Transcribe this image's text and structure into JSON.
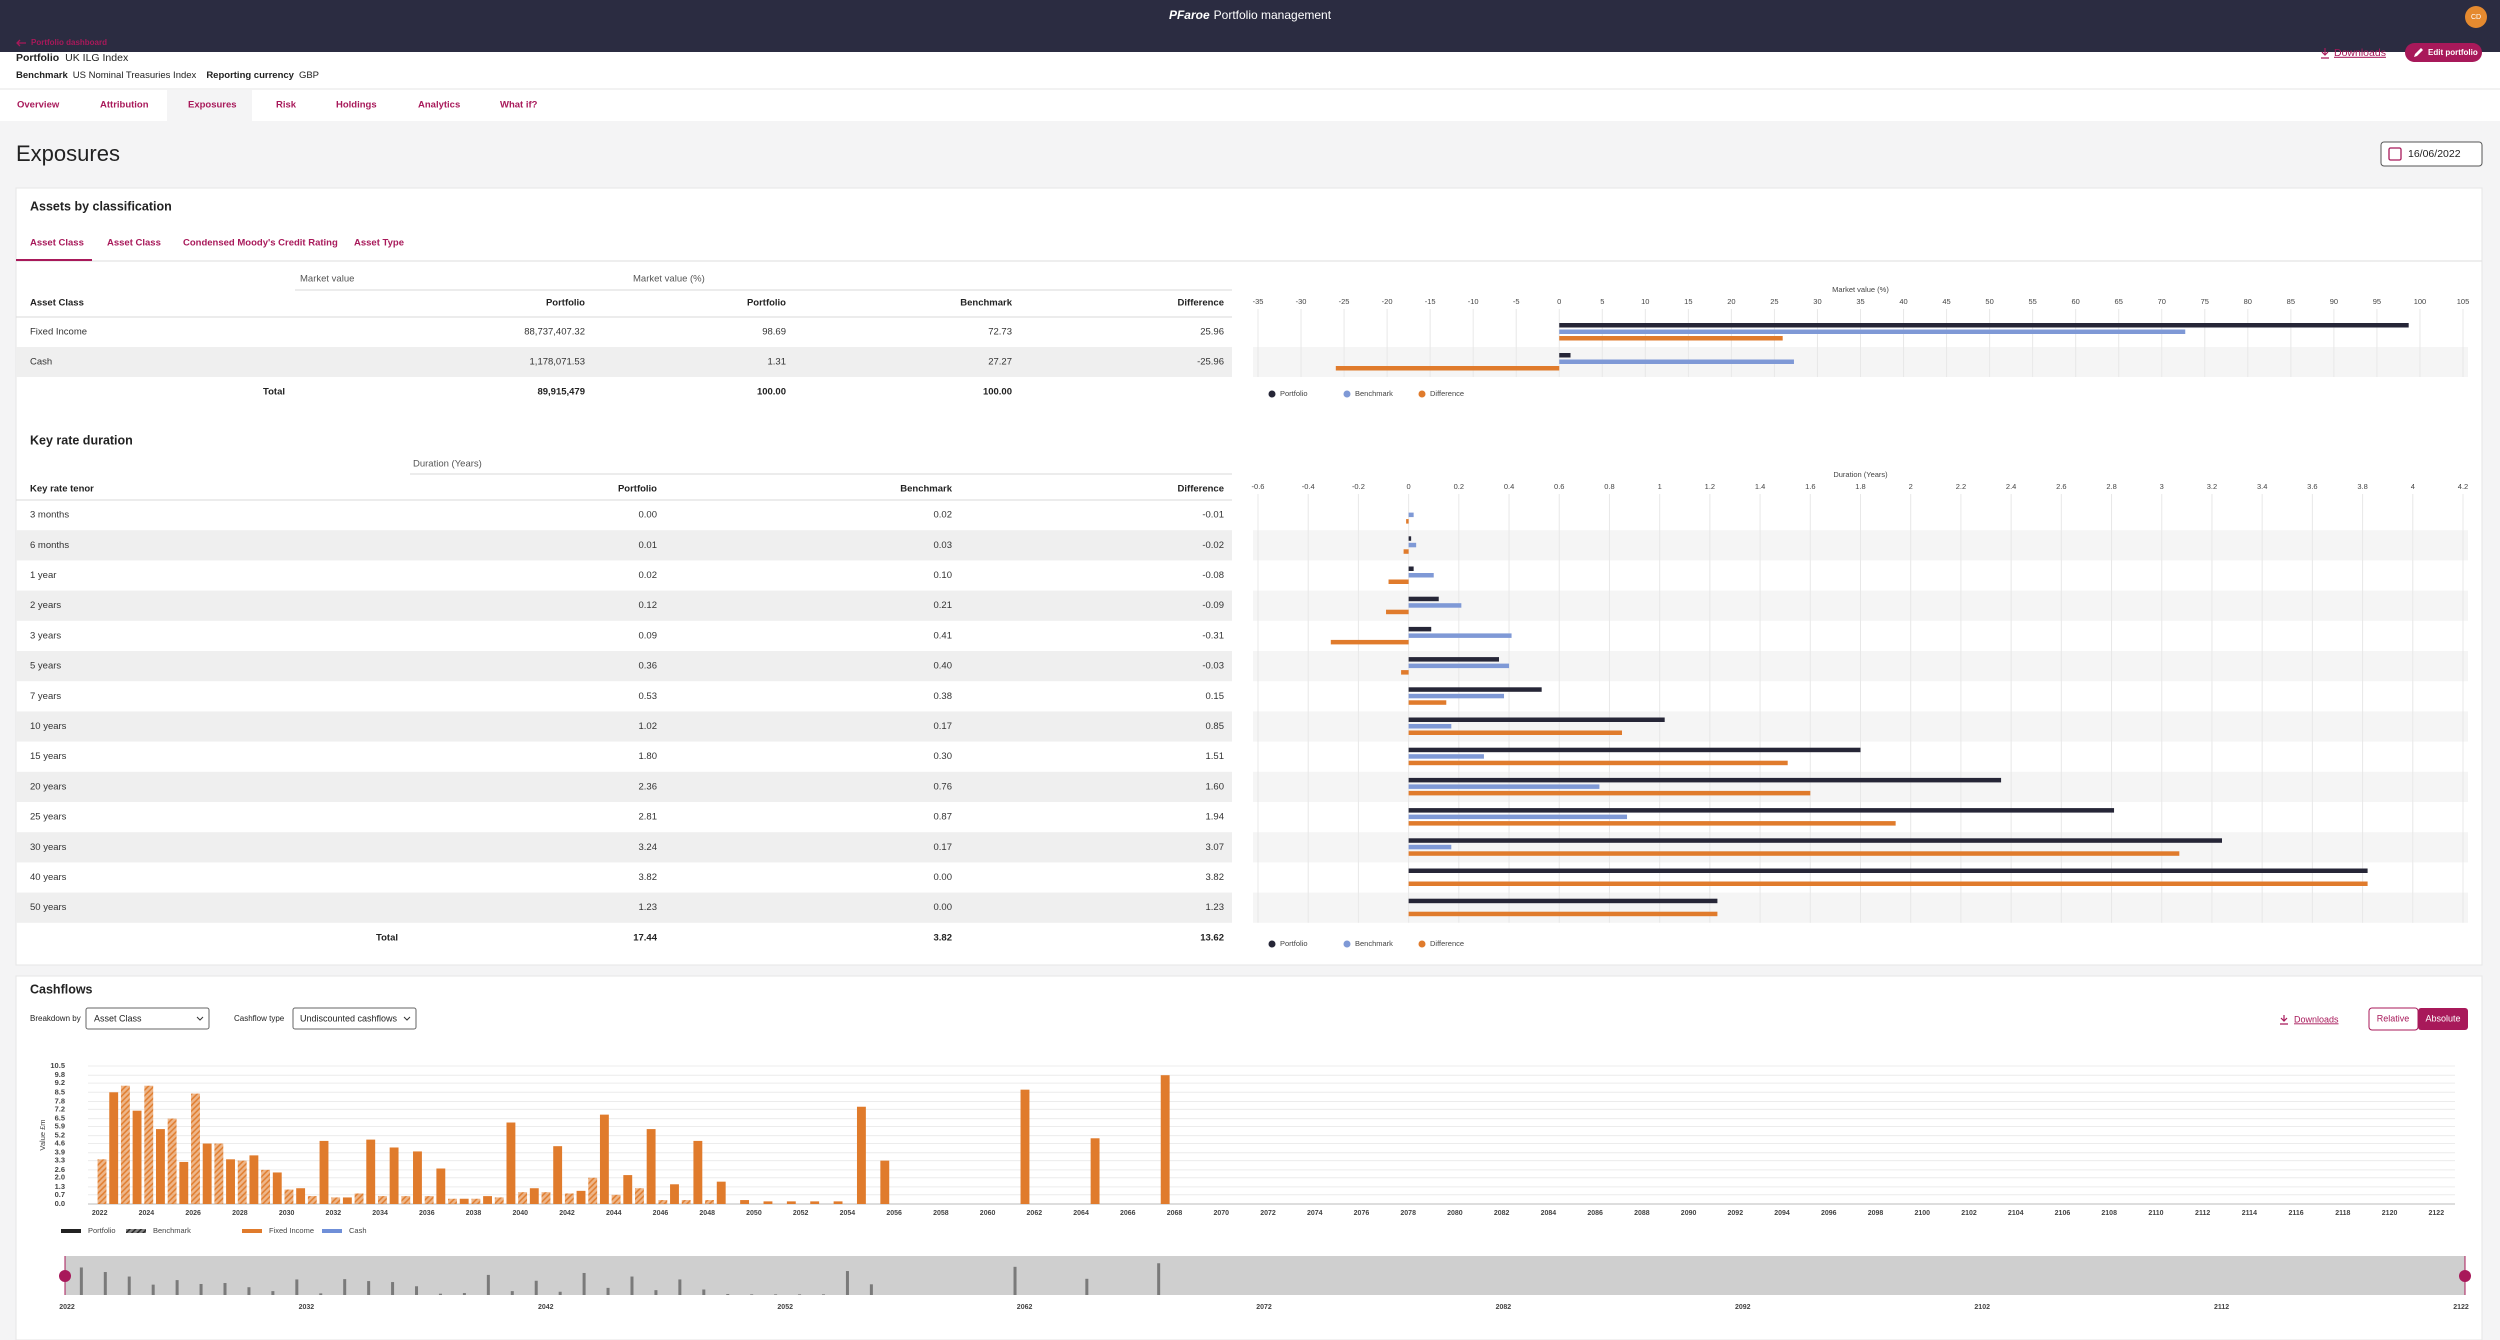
{
  "top_bar": {
    "brand": "PFaroe",
    "title": "Portfolio management",
    "avatar": "CD"
  },
  "header": {
    "back_link": "Portfolio dashboard",
    "portfolio_label": "Portfolio",
    "portfolio": "UK ILG Index",
    "benchmark_label": "Benchmark",
    "benchmark": "US Nominal Treasuries Index",
    "currency_label": "Reporting currency",
    "currency": "GBP",
    "downloads": "Downloads",
    "edit": "Edit portfolio"
  },
  "tabs": [
    "Overview",
    "Attribution",
    "Exposures",
    "Risk",
    "Holdings",
    "Analytics",
    "What if?"
  ],
  "page_title": "Exposures",
  "date": "16/06/2022",
  "assets": {
    "title": "Assets by classification",
    "subtabs": [
      "Asset Class",
      "Asset Class",
      "Condensed Moody's Credit Rating",
      "Asset Type"
    ],
    "table": {
      "group_headers": [
        "Market value",
        "Market value (%)"
      ],
      "columns": [
        "Asset Class",
        "Portfolio",
        "Portfolio",
        "Benchmark",
        "Difference"
      ],
      "rows": [
        [
          "88,737,407.32",
          "98.69",
          "72.73",
          "25.96"
        ],
        [
          "1,178,071.53",
          "1.31",
          "27.27",
          "-25.96"
        ]
      ],
      "total": [
        "Total",
        "89,915,479",
        "100.00",
        "100.00"
      ]
    }
  },
  "key_rate": {
    "title": "Key rate duration",
    "table": {
      "group_headers": [
        "Duration (Years)"
      ],
      "columns": [
        "Key rate tenor",
        "Portfolio",
        "Benchmark",
        "Difference"
      ],
      "rows": [
        [
          "0.00",
          "0.02",
          "-0.01"
        ],
        [
          "0.01",
          "0.03",
          "-0.02"
        ],
        [
          "0.02",
          "0.10",
          "-0.08"
        ],
        [
          "0.12",
          "0.21",
          "-0.09"
        ],
        [
          "0.09",
          "0.41",
          "-0.31"
        ],
        [
          "0.36",
          "0.40",
          "-0.03"
        ],
        [
          "0.53",
          "0.38",
          "0.15"
        ],
        [
          "1.02",
          "0.17",
          "0.85"
        ],
        [
          "1.80",
          "0.30",
          "1.51"
        ],
        [
          "2.36",
          "0.76",
          "1.60"
        ],
        [
          "2.81",
          "0.87",
          "1.94"
        ],
        [
          "3.24",
          "0.17",
          "3.07"
        ],
        [
          "3.82",
          "0.00",
          "3.82"
        ],
        [
          "1.23",
          "0.00",
          "1.23"
        ]
      ],
      "total": [
        "Total",
        "17.44",
        "3.82",
        "13.62"
      ]
    }
  },
  "cashflows": {
    "title": "Cashflows",
    "breakdown_label": "Breakdown by",
    "breakdown": "Asset Class",
    "type_label": "Cashflow type",
    "type": "Undiscounted cashflows",
    "downloads": "Downloads",
    "modes": [
      "Relative",
      "Absolute"
    ]
  },
  "chart_data": [
    {
      "type": "bar",
      "horizontal": true,
      "title": "Market value (%)",
      "grid": true,
      "categories": [
        "Fixed Income",
        "Cash"
      ],
      "series": [
        {
          "name": "Portfolio",
          "color": "#262637",
          "values": [
            98.69,
            1.31
          ]
        },
        {
          "name": "Benchmark",
          "color": "#7f99d6",
          "values": [
            72.73,
            27.27
          ]
        },
        {
          "name": "Difference",
          "color": "#e07b2c",
          "values": [
            25.96,
            -25.96
          ]
        }
      ],
      "xlim": [
        -35,
        105
      ],
      "xticks": [
        -35,
        -30,
        -25,
        -20,
        -15,
        -10,
        -5,
        0,
        5,
        10,
        15,
        20,
        25,
        30,
        35,
        40,
        45,
        50,
        55,
        60,
        65,
        70,
        75,
        80,
        85,
        90,
        95,
        100,
        105
      ]
    },
    {
      "type": "bar",
      "horizontal": true,
      "title": "Duration (Years)",
      "grid": true,
      "categories": [
        "3 months",
        "6 months",
        "1 year",
        "2 years",
        "3 years",
        "5 years",
        "7 years",
        "10 years",
        "15 years",
        "20 years",
        "25 years",
        "30 years",
        "40 years",
        "50 years"
      ],
      "series": [
        {
          "name": "Portfolio",
          "color": "#262637",
          "values": [
            0,
            0.01,
            0.02,
            0.12,
            0.09,
            0.36,
            0.53,
            1.02,
            1.8,
            2.36,
            2.81,
            3.24,
            3.82,
            1.23
          ]
        },
        {
          "name": "Benchmark",
          "color": "#7f99d6",
          "values": [
            0.02,
            0.03,
            0.1,
            0.21,
            0.41,
            0.4,
            0.38,
            0.17,
            0.3,
            0.76,
            0.87,
            0.17,
            0,
            0
          ]
        },
        {
          "name": "Difference",
          "color": "#e07b2c",
          "values": [
            -0.01,
            -0.02,
            -0.08,
            -0.09,
            -0.31,
            -0.03,
            0.15,
            0.85,
            1.51,
            1.6,
            1.94,
            3.07,
            3.82,
            1.23
          ]
        }
      ],
      "xlim": [
        -0.6,
        4.2
      ],
      "xticks": [
        -0.6,
        -0.4,
        -0.2,
        0,
        0.2,
        0.4,
        0.6,
        0.8,
        1,
        1.2,
        1.4,
        1.6,
        1.8,
        2,
        2.2,
        2.4,
        2.6,
        2.8,
        3,
        3.2,
        3.4,
        3.6,
        3.8,
        4,
        4.2
      ]
    },
    {
      "type": "bar",
      "horizontal": false,
      "y_label": "Value £m",
      "grid": true,
      "x": [
        2022,
        2023,
        2024,
        2025,
        2026,
        2027,
        2028,
        2029,
        2030,
        2031,
        2032,
        2033,
        2034,
        2035,
        2036,
        2037,
        2038,
        2039,
        2040,
        2041,
        2042,
        2043,
        2044,
        2045,
        2046,
        2047,
        2048,
        2049,
        2050,
        2051,
        2052,
        2053,
        2054,
        2055,
        2056,
        2057,
        2058,
        2059,
        2060,
        2061,
        2062,
        2063,
        2064,
        2065,
        2066,
        2067
      ],
      "series": [
        {
          "name": "Portfolio",
          "color": "#e07b2c",
          "hatched": false,
          "values": [
            8.5,
            7.1,
            5.7,
            3.2,
            4.6,
            3.4,
            3.7,
            2.4,
            1.2,
            4.8,
            0.5,
            4.9,
            4.3,
            4.0,
            2.7,
            0.4,
            0.6,
            6.2,
            1.2,
            4.4,
            1.0,
            6.8,
            2.2,
            5.7,
            1.5,
            4.8,
            1.7,
            0.3,
            0.2,
            0.2,
            0.2,
            0.2,
            7.4,
            3.3,
            0,
            0,
            0,
            0,
            0,
            8.7,
            0,
            0,
            5.0,
            0,
            0,
            9.8
          ]
        },
        {
          "name": "Benchmark",
          "color": "#e07b2c",
          "hatched": true,
          "values": [
            3.4,
            9.0,
            9.0,
            6.5,
            8.4,
            4.6,
            3.3,
            2.6,
            1.1,
            0.6,
            0.5,
            0.8,
            0.6,
            0.6,
            0.6,
            0.4,
            0.4,
            0.5,
            0.9,
            0.9,
            0.8,
            2.0,
            0.7,
            1.2,
            0.3,
            0.3,
            0.3,
            0,
            0,
            0,
            0,
            0,
            0,
            0,
            0,
            0,
            0,
            0,
            0,
            0,
            0,
            0,
            0,
            0,
            0,
            0
          ]
        }
      ],
      "legend_classes": [
        {
          "name": "Fixed Income",
          "color": "#e07b2c"
        },
        {
          "name": "Cash",
          "color": "#6f8fd8"
        }
      ],
      "xlim": [
        2021.5,
        2122.8
      ],
      "xticks": [
        2022,
        2024,
        2026,
        2028,
        2030,
        2032,
        2034,
        2036,
        2038,
        2040,
        2042,
        2044,
        2046,
        2048,
        2050,
        2052,
        2054,
        2056,
        2058,
        2060,
        2062,
        2064,
        2066,
        2068,
        2070,
        2072,
        2074,
        2076,
        2078,
        2080,
        2082,
        2084,
        2086,
        2088,
        2090,
        2092,
        2094,
        2096,
        2098,
        2100,
        2102,
        2104,
        2106,
        2108,
        2110,
        2112,
        2114,
        2116,
        2118,
        2120,
        2122
      ],
      "ylim": [
        0,
        10.5
      ],
      "yticks": [
        {
          "value": 0,
          "label": "0.0"
        },
        0.7,
        1.3,
        {
          "value": 2,
          "label": "2.0"
        },
        2.6,
        3.3,
        3.9,
        4.6,
        5.2,
        5.9,
        6.5,
        7.2,
        7.8,
        8.5,
        9.2,
        9.8,
        10.5
      ],
      "navigator_ticks": [
        2022,
        2032,
        2042,
        2052,
        2062,
        2072,
        2082,
        2092,
        2102,
        2112,
        2122
      ]
    }
  ]
}
